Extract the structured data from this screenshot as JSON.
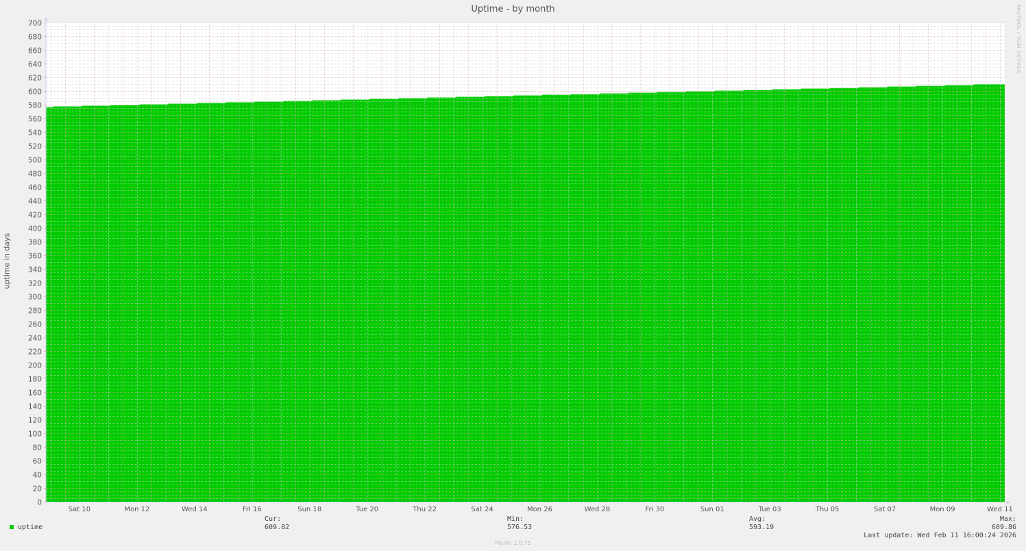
{
  "chart_data": {
    "type": "area",
    "title": "Uptime - by month",
    "ylabel": "uptime in days",
    "xlabel": "",
    "ylim": [
      0,
      700
    ],
    "y_major_step": 20,
    "y_minor_step": 5,
    "xlim": [
      "2026-01-09T08:00",
      "2026-02-11T16:00"
    ],
    "grid": true,
    "legend_placement": "bottom-left",
    "x_tick_labels": [
      {
        "date": "2026-01-10T12:00",
        "label": "Sat 10"
      },
      {
        "date": "2026-01-12T12:00",
        "label": "Mon 12"
      },
      {
        "date": "2026-01-14T12:00",
        "label": "Wed 14"
      },
      {
        "date": "2026-01-16T12:00",
        "label": "Fri 16"
      },
      {
        "date": "2026-01-18T12:00",
        "label": "Sun 18"
      },
      {
        "date": "2026-01-20T12:00",
        "label": "Tue 20"
      },
      {
        "date": "2026-01-22T12:00",
        "label": "Thu 22"
      },
      {
        "date": "2026-01-24T12:00",
        "label": "Sat 24"
      },
      {
        "date": "2026-01-26T12:00",
        "label": "Mon 26"
      },
      {
        "date": "2026-01-28T12:00",
        "label": "Wed 28"
      },
      {
        "date": "2026-01-30T12:00",
        "label": "Fri 30"
      },
      {
        "date": "2026-02-01T12:00",
        "label": "Sun 01"
      },
      {
        "date": "2026-02-03T12:00",
        "label": "Tue 03"
      },
      {
        "date": "2026-02-05T12:00",
        "label": "Thu 05"
      },
      {
        "date": "2026-02-07T12:00",
        "label": "Sat 07"
      },
      {
        "date": "2026-02-09T12:00",
        "label": "Mon 09"
      },
      {
        "date": "2026-02-11T12:00",
        "label": "Wed 11"
      }
    ],
    "series": [
      {
        "name": "uptime",
        "color": "#00cc00",
        "step": true,
        "start_date": "2026-01-09T08:00",
        "start_value": 576.53,
        "points": [
          [
            "2026-01-09T14:00",
            577.5
          ],
          [
            "2026-01-10T14:00",
            578.5
          ],
          [
            "2026-01-11T14:00",
            579.5
          ],
          [
            "2026-01-12T14:00",
            580.5
          ],
          [
            "2026-01-13T14:00",
            581.5
          ],
          [
            "2026-01-14T14:00",
            582.5
          ],
          [
            "2026-01-15T14:00",
            583.5
          ],
          [
            "2026-01-16T14:00",
            584.5
          ],
          [
            "2026-01-17T14:00",
            585.5
          ],
          [
            "2026-01-18T14:00",
            586.5
          ],
          [
            "2026-01-19T14:00",
            587.5
          ],
          [
            "2026-01-20T14:00",
            588.5
          ],
          [
            "2026-01-21T14:00",
            589.5
          ],
          [
            "2026-01-22T14:00",
            590.5
          ],
          [
            "2026-01-23T14:00",
            591.5
          ],
          [
            "2026-01-24T14:00",
            592.5
          ],
          [
            "2026-01-25T14:00",
            593.5
          ],
          [
            "2026-01-26T14:00",
            594.5
          ],
          [
            "2026-01-27T14:00",
            595.5
          ],
          [
            "2026-01-28T14:00",
            596.5
          ],
          [
            "2026-01-29T14:00",
            597.5
          ],
          [
            "2026-01-30T14:00",
            598.5
          ],
          [
            "2026-01-31T14:00",
            599.5
          ],
          [
            "2026-02-01T14:00",
            600.5
          ],
          [
            "2026-02-02T14:00",
            601.5
          ],
          [
            "2026-02-03T14:00",
            602.5
          ],
          [
            "2026-02-04T14:00",
            603.5
          ],
          [
            "2026-02-05T14:00",
            604.5
          ],
          [
            "2026-02-06T14:00",
            605.5
          ],
          [
            "2026-02-07T14:00",
            606.5
          ],
          [
            "2026-02-08T14:00",
            607.5
          ],
          [
            "2026-02-09T14:00",
            608.5
          ],
          [
            "2026-02-10T14:00",
            609.82
          ]
        ]
      }
    ]
  },
  "legend": {
    "series_label": "uptime",
    "cur_label": "Cur:",
    "cur_value": "609.82",
    "min_label": "Min:",
    "min_value": "576.53",
    "avg_label": "Avg:",
    "avg_value": "593.19",
    "max_label": "Max:",
    "max_value": "609.86",
    "last_update": "Last update: Wed Feb 11 16:00:24 2026"
  },
  "credit": "RRDTOOL / TOBI OETIKER",
  "footer": "Munin 2.0.75"
}
